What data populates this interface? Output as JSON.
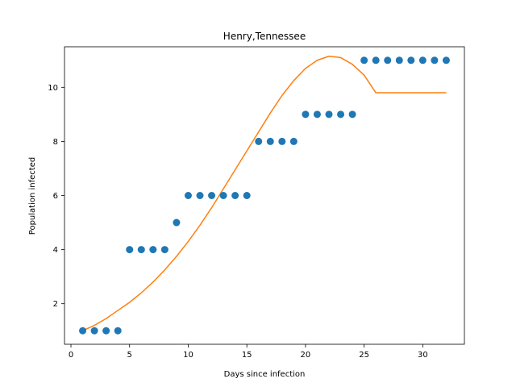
{
  "chart_data": {
    "type": "scatter",
    "title": "Henry,Tennessee",
    "xlabel": "Days since infection",
    "ylabel": "Population infected",
    "xlim": [
      -0.55,
      33.55
    ],
    "ylim": [
      0.5,
      11.5
    ],
    "xticks": [
      0,
      5,
      10,
      15,
      20,
      25,
      30
    ],
    "yticks": [
      2,
      4,
      6,
      8,
      10
    ],
    "grid": false,
    "series": [
      {
        "kind": "points",
        "color": "#1f77b4",
        "x": [
          1,
          2,
          3,
          4,
          5,
          6,
          7,
          8,
          9,
          10,
          11,
          12,
          13,
          14,
          15,
          16,
          17,
          18,
          19,
          20,
          21,
          22,
          23,
          24,
          25,
          26,
          27,
          28,
          29,
          30,
          31,
          32
        ],
        "y": [
          1,
          1,
          1,
          1,
          4,
          4,
          4,
          4,
          5,
          6,
          6,
          6,
          6,
          6,
          6,
          8,
          8,
          8,
          8,
          9,
          9,
          9,
          9,
          9,
          11,
          11,
          11,
          11,
          11,
          11,
          11,
          11
        ]
      },
      {
        "kind": "line",
        "color": "#ff7f0e",
        "x": [
          1,
          2,
          3,
          4,
          5,
          6,
          7,
          8,
          9,
          10,
          11,
          12,
          13,
          14,
          15,
          16,
          17,
          18,
          19,
          20,
          21,
          22,
          23,
          24,
          25,
          26,
          27,
          28,
          29,
          30,
          31,
          32
        ],
        "y": [
          1.0,
          1.2,
          1.45,
          1.75,
          2.05,
          2.4,
          2.8,
          3.25,
          3.75,
          4.3,
          4.9,
          5.55,
          6.25,
          6.95,
          7.65,
          8.35,
          9.05,
          9.7,
          10.25,
          10.7,
          11.0,
          11.15,
          11.1,
          10.85,
          10.45,
          9.8,
          9.8,
          9.8,
          9.8,
          9.8,
          9.8,
          9.8
        ]
      }
    ]
  }
}
